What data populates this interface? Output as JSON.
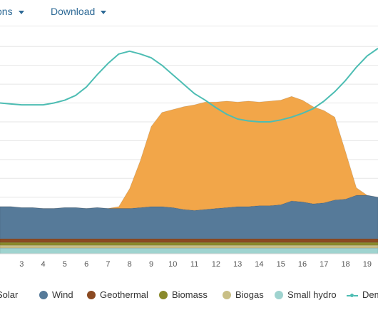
{
  "toolbar": {
    "options_label": "tions",
    "download_label": "Download"
  },
  "chart_data": {
    "type": "area",
    "stacked": true,
    "grid": true,
    "legend_position": "bottom",
    "x_tick_labels": [
      "3",
      "4",
      "5",
      "6",
      "7",
      "8",
      "9",
      "10",
      "11",
      "12",
      "13",
      "14",
      "15",
      "16",
      "17",
      "18",
      "19"
    ],
    "x": [
      2.0,
      2.5,
      3.0,
      3.5,
      4.0,
      4.5,
      5.0,
      5.5,
      6.0,
      6.5,
      7.0,
      7.5,
      8.0,
      8.5,
      9.0,
      9.5,
      10.0,
      10.5,
      11.0,
      11.5,
      12.0,
      12.5,
      13.0,
      13.5,
      14.0,
      14.5,
      15.0,
      15.5,
      16.0,
      16.5,
      17.0,
      17.5,
      18.0,
      18.5,
      19.0,
      19.5
    ],
    "series": [
      {
        "name": "Small hydro",
        "color": "#9fd3cf",
        "values": [
          0.6,
          0.6,
          0.6,
          0.6,
          0.6,
          0.6,
          0.6,
          0.6,
          0.6,
          0.6,
          0.6,
          0.6,
          0.6,
          0.6,
          0.6,
          0.6,
          0.6,
          0.6,
          0.6,
          0.6,
          0.6,
          0.6,
          0.6,
          0.6,
          0.6,
          0.6,
          0.6,
          0.6,
          0.6,
          0.6,
          0.6,
          0.6,
          0.6,
          0.6,
          0.6,
          0.6
        ]
      },
      {
        "name": "Biogas",
        "color": "#c9bf86",
        "values": [
          0.3,
          0.3,
          0.3,
          0.3,
          0.3,
          0.3,
          0.3,
          0.3,
          0.3,
          0.3,
          0.3,
          0.3,
          0.3,
          0.3,
          0.3,
          0.3,
          0.3,
          0.3,
          0.3,
          0.3,
          0.3,
          0.3,
          0.3,
          0.3,
          0.3,
          0.3,
          0.3,
          0.3,
          0.3,
          0.3,
          0.3,
          0.3,
          0.3,
          0.3,
          0.3,
          0.3
        ]
      },
      {
        "name": "Biomass",
        "color": "#8a8a2c",
        "values": [
          0.3,
          0.3,
          0.3,
          0.3,
          0.3,
          0.3,
          0.3,
          0.3,
          0.3,
          0.3,
          0.3,
          0.3,
          0.3,
          0.3,
          0.3,
          0.3,
          0.3,
          0.3,
          0.3,
          0.3,
          0.3,
          0.3,
          0.3,
          0.3,
          0.3,
          0.3,
          0.3,
          0.3,
          0.3,
          0.3,
          0.3,
          0.3,
          0.3,
          0.3,
          0.3,
          0.3
        ]
      },
      {
        "name": "Geothermal",
        "color": "#8b4a22",
        "values": [
          0.4,
          0.4,
          0.4,
          0.4,
          0.4,
          0.4,
          0.4,
          0.4,
          0.4,
          0.4,
          0.4,
          0.4,
          0.4,
          0.4,
          0.4,
          0.4,
          0.4,
          0.4,
          0.4,
          0.4,
          0.4,
          0.4,
          0.4,
          0.4,
          0.4,
          0.4,
          0.4,
          0.4,
          0.4,
          0.4,
          0.4,
          0.4,
          0.4,
          0.4,
          0.4,
          0.4
        ]
      },
      {
        "name": "Wind",
        "color": "#567a99",
        "values": [
          3.4,
          3.4,
          3.3,
          3.3,
          3.2,
          3.2,
          3.3,
          3.3,
          3.2,
          3.3,
          3.2,
          3.2,
          3.2,
          3.3,
          3.4,
          3.4,
          3.3,
          3.1,
          3.0,
          3.1,
          3.2,
          3.3,
          3.4,
          3.4,
          3.5,
          3.5,
          3.6,
          4.0,
          3.9,
          3.7,
          3.8,
          4.1,
          4.2,
          4.6,
          4.6,
          4.4
        ]
      },
      {
        "name": "Solar",
        "color": "#f2a649",
        "values": [
          0,
          0,
          0,
          0,
          0,
          0,
          0,
          0,
          0,
          0,
          0,
          0.2,
          2.1,
          5.0,
          8.5,
          10.0,
          10.4,
          10.9,
          11.2,
          11.4,
          11.3,
          11.3,
          11.1,
          11.2,
          11.0,
          11.1,
          11.1,
          11.1,
          10.8,
          10.3,
          9.8,
          8.8,
          5.0,
          0.8,
          0,
          0
        ]
      },
      {
        "name": "Demand",
        "type": "line",
        "color": "#4dbdb3",
        "values": [
          16.0,
          15.9,
          15.8,
          15.8,
          15.8,
          16.0,
          16.3,
          16.8,
          17.7,
          19.0,
          20.2,
          21.2,
          21.5,
          21.2,
          20.8,
          20.0,
          19.0,
          18.0,
          17.0,
          16.3,
          15.5,
          14.8,
          14.3,
          14.1,
          14.0,
          14.0,
          14.2,
          14.5,
          14.9,
          15.4,
          16.2,
          17.2,
          18.4,
          19.8,
          21.0,
          21.8
        ]
      }
    ],
    "ylim": [
      0,
      23
    ],
    "xlim": [
      2.0,
      19.5
    ]
  },
  "legend": [
    {
      "label": "Solar",
      "color": "#f2a649",
      "kind": "dot"
    },
    {
      "label": "Wind",
      "color": "#567a99",
      "kind": "dot"
    },
    {
      "label": "Geothermal",
      "color": "#8b4a22",
      "kind": "dot"
    },
    {
      "label": "Biomass",
      "color": "#8a8a2c",
      "kind": "dot"
    },
    {
      "label": "Biogas",
      "color": "#c9bf86",
      "kind": "dot"
    },
    {
      "label": "Small hydro",
      "color": "#9fd3cf",
      "kind": "dot"
    },
    {
      "label": "Dem",
      "color": "#4dbdb3",
      "kind": "line"
    }
  ]
}
